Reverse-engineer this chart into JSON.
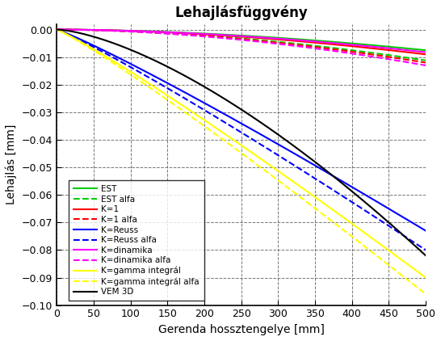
{
  "title": "Lehajlásfüggvény",
  "xlabel": "Gerenda hossztengelye [mm]",
  "ylabel": "Lehajlás [mm]",
  "xlim": [
    0,
    500
  ],
  "ylim": [
    -0.1,
    0.002
  ],
  "x_ticks": [
    0,
    50,
    100,
    150,
    200,
    250,
    300,
    350,
    400,
    450,
    500
  ],
  "y_ticks": [
    0,
    -0.01,
    -0.02,
    -0.03,
    -0.04,
    -0.05,
    -0.06,
    -0.07,
    -0.08,
    -0.09,
    -0.1
  ],
  "curves": [
    {
      "name": "EST",
      "color": "#00cc00",
      "linestyle": "solid",
      "end_val": -0.0075,
      "power": 1.8
    },
    {
      "name": "EST alfa",
      "color": "#00cc00",
      "linestyle": "dashed",
      "end_val": -0.0112,
      "power": 1.8
    },
    {
      "name": "K=1",
      "color": "#ff0000",
      "linestyle": "solid",
      "end_val": -0.009,
      "power": 1.8
    },
    {
      "name": "K=1 alfa",
      "color": "#ff0000",
      "linestyle": "dashed",
      "end_val": -0.012,
      "power": 1.8
    },
    {
      "name": "K=Reuss",
      "color": "#0000ff",
      "linestyle": "solid",
      "end_val": -0.073,
      "power": 1.1
    },
    {
      "name": "K=Reuss alfa",
      "color": "#0000ff",
      "linestyle": "dashed",
      "end_val": -0.08,
      "power": 1.1
    },
    {
      "name": "K=dinamika",
      "color": "#ff00ff",
      "linestyle": "solid",
      "end_val": -0.0082,
      "power": 1.8
    },
    {
      "name": "K=dinamika alfa",
      "color": "#ff00ff",
      "linestyle": "dashed",
      "end_val": -0.013,
      "power": 1.8
    },
    {
      "name": "K=gamma integrál",
      "color": "#ffff00",
      "linestyle": "solid",
      "end_val": -0.09,
      "power": 1.1
    },
    {
      "name": "K=gamma integrál alfa",
      "color": "#ffff00",
      "linestyle": "dashed",
      "end_val": -0.096,
      "power": 1.1
    },
    {
      "name": "VEM 3D",
      "color": "#000000",
      "linestyle": "solid",
      "end_val": -0.082,
      "power": 1.5
    }
  ],
  "figsize": [
    5.46,
    4.22
  ],
  "dpi": 100,
  "background_color": "#ffffff",
  "grid_color": "#555555",
  "legend_fontsize": 7.5,
  "title_fontsize": 12,
  "axis_fontsize": 10
}
